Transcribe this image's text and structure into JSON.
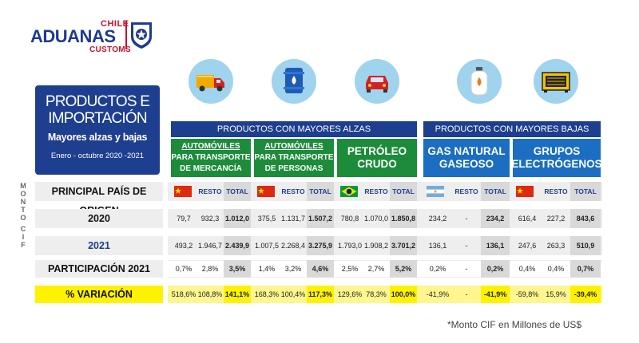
{
  "logo": {
    "chile": "CHILE",
    "aduanas": "ADUANAS",
    "customs": "CUSTOMS"
  },
  "title": {
    "line1": "PRODUCTOS E",
    "line2": "IMPORTACIÓN",
    "subtitle": "Mayores alzas y bajas",
    "period": "Enero - octubre 2020 -2021"
  },
  "vertical": {
    "monto": [
      "M",
      "O",
      "N",
      "T",
      "O"
    ],
    "cif": [
      "C",
      "I",
      "F"
    ]
  },
  "groups": {
    "alzas": "PRODUCTOS CON MAYORES ALZAS",
    "bajas": "PRODUCTOS CON MAYORES BAJAS"
  },
  "products": [
    {
      "lines": [
        "AUTOMÓVILES",
        "PARA TRANSPORTE",
        "DE MERCANCÍA"
      ],
      "icon": "truck-icon"
    },
    {
      "lines": [
        "AUTOMÓVILES",
        "PARA TRANSPORTE",
        "DE PERSONAS"
      ],
      "icon": "oil-barrel-icon"
    },
    {
      "lines": [
        "PETRÓLEO",
        "CRUDO"
      ],
      "icon": "car-icon"
    },
    {
      "lines": [
        "GAS NATURAL",
        "GASEOSO"
      ],
      "icon": "gas-cylinder-icon"
    },
    {
      "lines": [
        "GRUPOS",
        "ELECTRÓGENOS"
      ],
      "icon": "generator-icon"
    }
  ],
  "rows": {
    "origin": "PRINCIPAL PAÍS DE ORIGEN",
    "y2020": "2020",
    "y2021": "2021",
    "part": "PARTICIPACIÓN 2021",
    "var": "% VARIACIÓN"
  },
  "col_labels": {
    "resto": "RESTO",
    "total": "TOTAL"
  },
  "origin_flags": [
    "China",
    "China",
    "Brasil",
    "Argentina",
    "China"
  ],
  "table": [
    {
      "y2020": [
        "79,7",
        "932,3",
        "1.012,0"
      ],
      "y2021": [
        "493,2",
        "1.946,7",
        "2.439,9"
      ],
      "part": [
        "0,7%",
        "2,8%",
        "3,5%"
      ],
      "var": [
        "518,6%",
        "108,8%",
        "141,1%"
      ]
    },
    {
      "y2020": [
        "375,5",
        "1.131,7",
        "1.507,2"
      ],
      "y2021": [
        "1.007,5",
        "2.268,4",
        "3.275,9"
      ],
      "part": [
        "1,4%",
        "3,2%",
        "4,6%"
      ],
      "var": [
        "168,3%",
        "100,4%",
        "117,3%"
      ]
    },
    {
      "y2020": [
        "780,8",
        "1.070,0",
        "1.850,8"
      ],
      "y2021": [
        "1.793,0",
        "1.908,2",
        "3.701,2"
      ],
      "part": [
        "2,5%",
        "2,7%",
        "5,2%"
      ],
      "var": [
        "129,6%",
        "78,3%",
        "100,0%"
      ]
    },
    {
      "y2020": [
        "234,2",
        "-",
        "234,2"
      ],
      "y2021": [
        "136,1",
        "-",
        "136,1"
      ],
      "part": [
        "0,2%",
        "-",
        "0,2%"
      ],
      "var": [
        "-41,9%",
        "-",
        "-41,9%"
      ]
    },
    {
      "y2020": [
        "616,4",
        "227,2",
        "843,6"
      ],
      "y2021": [
        "247,6",
        "263,3",
        "510,9"
      ],
      "part": [
        "0,4%",
        "0,4%",
        "0,7%"
      ],
      "var": [
        "-59,8%",
        "15,9%",
        "-39,4%"
      ]
    }
  ],
  "note": "*Monto CIF en Millones de US$",
  "colors": {
    "navy": "#1e3f8f",
    "green": "#1c8c3a",
    "blue": "#1b6ec2",
    "yellow": "#fff200",
    "icon_bg": "#9fd3ee"
  }
}
